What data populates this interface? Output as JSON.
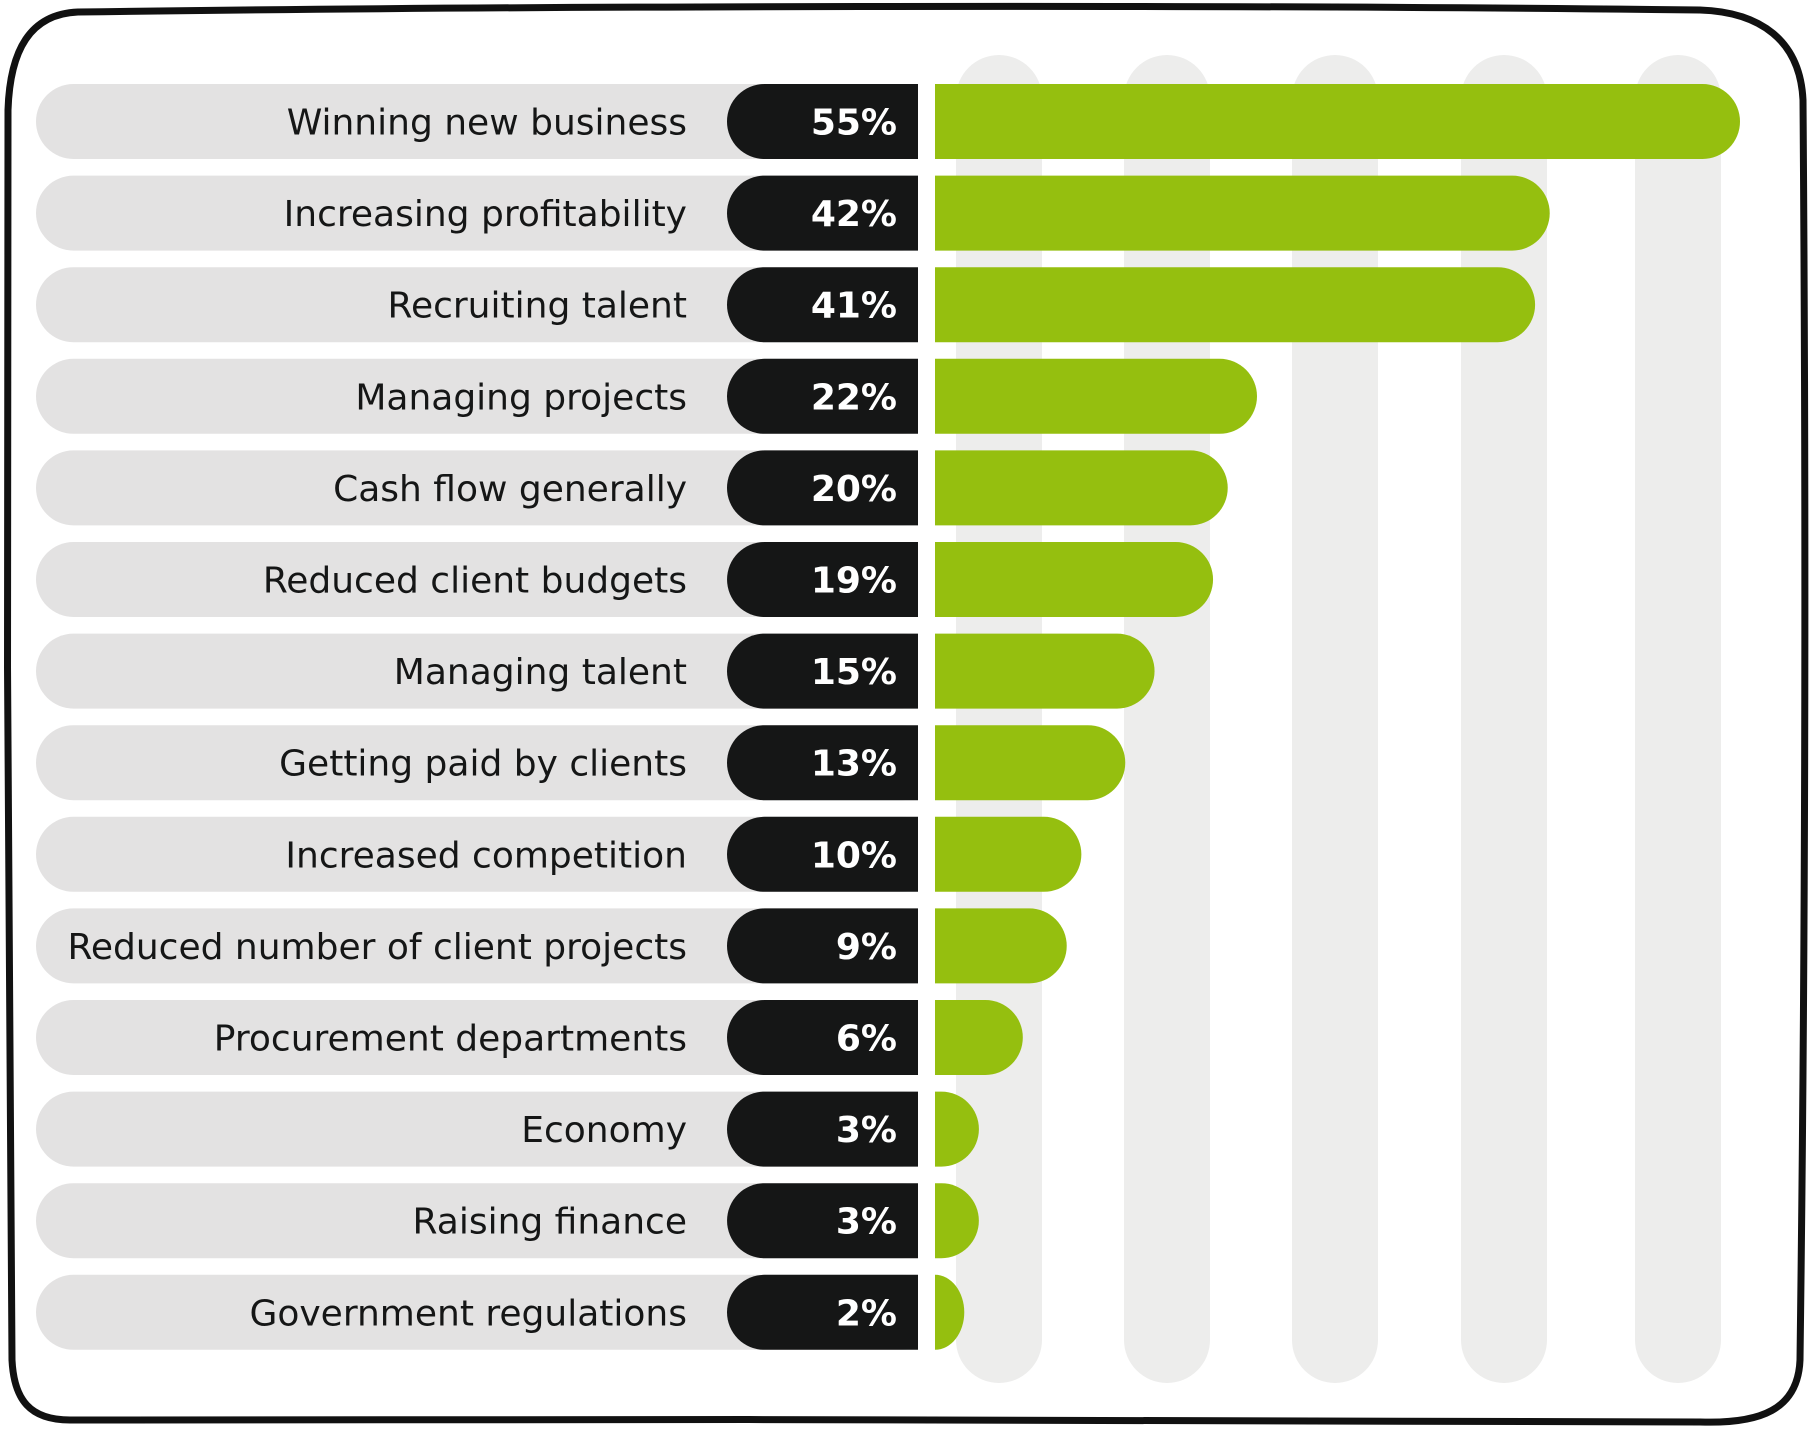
{
  "colors": {
    "background": "#ffffff",
    "frame": "#111111",
    "label_pill": "#e3e2e2",
    "value_pill": "#151616",
    "value_text": "#ffffff",
    "bar": "#95bf0f",
    "gridband": "#ededec",
    "label_text": "#151616"
  },
  "chart_data": {
    "type": "bar",
    "orientation": "horizontal",
    "categories": [
      "Winning new business",
      "Increasing profitability",
      "Recruiting talent",
      "Managing projects",
      "Cash flow generally",
      "Reduced client budgets",
      "Managing talent",
      "Getting paid by clients",
      "Increased competition",
      "Reduced number of client projects",
      "Procurement departments",
      "Economy",
      "Raising finance",
      "Government regulations"
    ],
    "values": [
      55,
      42,
      41,
      22,
      20,
      19,
      15,
      13,
      10,
      9,
      6,
      3,
      3,
      2
    ],
    "value_labels": [
      "55%",
      "42%",
      "41%",
      "22%",
      "20%",
      "19%",
      "15%",
      "13%",
      "10%",
      "9%",
      "6%",
      "3%",
      "3%",
      "2%"
    ],
    "xlim": [
      0,
      55
    ],
    "grid": true,
    "legend": "none"
  }
}
